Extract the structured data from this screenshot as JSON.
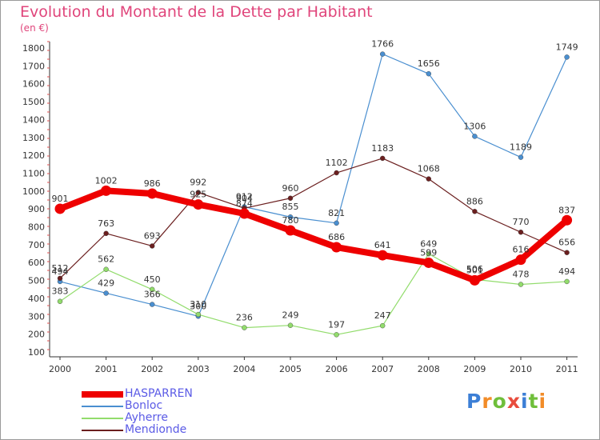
{
  "title": "Evolution du Montant de la Dette par Habitant",
  "subtitle": "(en €)",
  "logo": {
    "text": "Proxiti",
    "colors": [
      "#3c7fd6",
      "#f28c28",
      "#6fbf3b",
      "#e84c3d",
      "#3c7fd6",
      "#6fbf3b",
      "#f28c28"
    ]
  },
  "chart_data": {
    "type": "line",
    "x": [
      "2000",
      "2001",
      "2002",
      "2003",
      "2004",
      "2005",
      "2006",
      "2007",
      "2008",
      "2009",
      "2010",
      "2011"
    ],
    "yticks": [
      "100",
      "200",
      "300",
      "400",
      "500",
      "600",
      "700",
      "800",
      "900",
      "1000",
      "1100",
      "1200",
      "1300",
      "1400",
      "1500",
      "1600",
      "1700",
      "1800"
    ],
    "ylim": [
      100,
      1800
    ],
    "grid": false,
    "legend_position": "bottom-left",
    "series": [
      {
        "name": "HASPARREN",
        "color": "#ee0000",
        "values": [
          901,
          1002,
          986,
          925,
          874,
          780,
          686,
          641,
          599,
          501,
          616,
          837
        ],
        "labels": [
          "901",
          "1002",
          "986",
          "925",
          "874",
          "780",
          "686",
          "641",
          "599",
          "501",
          "616",
          "837"
        ]
      },
      {
        "name": "Bonloc",
        "color": "#4a8fd0",
        "values": [
          494,
          429,
          366,
          300,
          912,
          855,
          821,
          1766,
          1656,
          1306,
          1189,
          1749
        ],
        "labels": [
          "494",
          "429",
          "366",
          "300",
          "912",
          "855",
          "821",
          "1766",
          "1656",
          "1306",
          "1189",
          "1749"
        ]
      },
      {
        "name": "Ayherre",
        "color": "#92dc6c",
        "values": [
          383,
          562,
          450,
          310,
          236,
          249,
          197,
          247,
          649,
          506,
          478,
          494
        ],
        "labels": [
          "383",
          "562",
          "450",
          "310",
          "236",
          "249",
          "197",
          "247",
          "649",
          "506",
          "478",
          "494"
        ]
      },
      {
        "name": "Mendionde",
        "color": "#6b1f1f",
        "values": [
          512,
          763,
          693,
          992,
          904,
          960,
          1102,
          1183,
          1068,
          886,
          770,
          656
        ],
        "labels": [
          "512",
          "763",
          "693",
          "992",
          "904",
          "960",
          "1102",
          "1183",
          "1068",
          "886",
          "770",
          "656"
        ]
      }
    ]
  }
}
